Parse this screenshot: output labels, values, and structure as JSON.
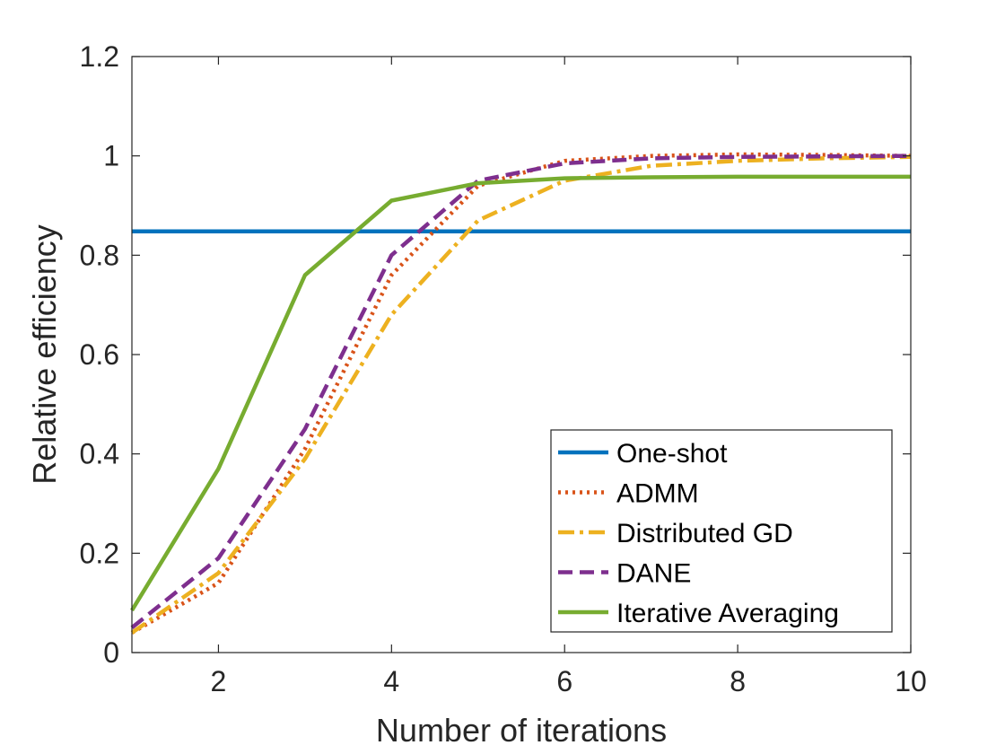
{
  "chart_data": {
    "type": "line",
    "title": "",
    "xlabel": "Number of iterations",
    "ylabel": "Relative efficiency",
    "xlim": [
      1,
      10
    ],
    "ylim": [
      0,
      1.2
    ],
    "xticks": [
      2,
      4,
      6,
      8,
      10
    ],
    "yticks": [
      0,
      0.2,
      0.4,
      0.6,
      0.8,
      1,
      1.2
    ],
    "xtick_labels": [
      "2",
      "4",
      "6",
      "8",
      "10"
    ],
    "ytick_labels": [
      "0",
      "0.2",
      "0.4",
      "0.6",
      "0.8",
      "1",
      "1.2"
    ],
    "grid": false,
    "legend_position": "bottom-right",
    "x": [
      1,
      2,
      3,
      4,
      5,
      6,
      7,
      8,
      9,
      10
    ],
    "series": [
      {
        "name": "One-shot",
        "color": "#0072BD",
        "style": "solid",
        "values": [
          0.848,
          0.848,
          0.848,
          0.848,
          0.848,
          0.848,
          0.848,
          0.848,
          0.848,
          0.848
        ]
      },
      {
        "name": "ADMM",
        "color": "#D95319",
        "style": "dotted",
        "values": [
          0.04,
          0.14,
          0.41,
          0.76,
          0.94,
          0.99,
          1.0,
          1.003,
          1.002,
          1.0
        ]
      },
      {
        "name": "Distributed GD",
        "color": "#EDB120",
        "style": "dashdot",
        "values": [
          0.04,
          0.16,
          0.39,
          0.68,
          0.87,
          0.95,
          0.98,
          0.99,
          0.995,
          0.998
        ]
      },
      {
        "name": "DANE",
        "color": "#7E2F8E",
        "style": "dashed",
        "values": [
          0.05,
          0.19,
          0.45,
          0.8,
          0.95,
          0.985,
          0.995,
          0.998,
          0.999,
          1.0
        ]
      },
      {
        "name": "Iterative Averaging",
        "color": "#77AC30",
        "style": "solid",
        "values": [
          0.085,
          0.37,
          0.76,
          0.91,
          0.945,
          0.955,
          0.957,
          0.958,
          0.958,
          0.958
        ]
      }
    ]
  }
}
